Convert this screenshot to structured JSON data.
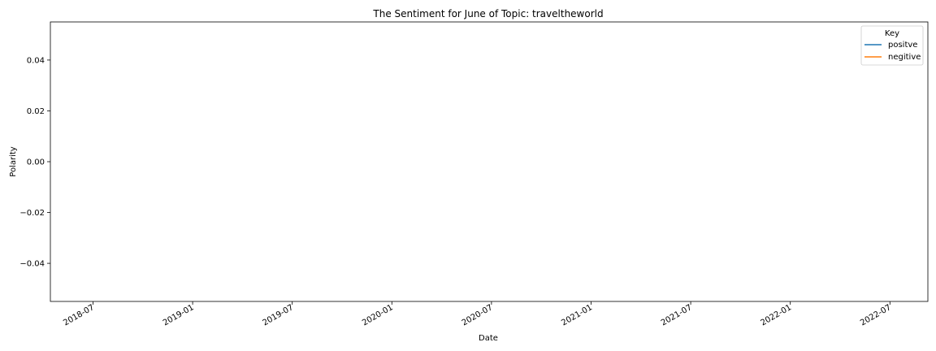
{
  "chart_data": {
    "type": "line",
    "title": "The Sentiment for June of Topic: traveltheworld",
    "xlabel": "Date",
    "ylabel": "Polarity",
    "x_ticks": [
      "2018-07",
      "2019-01",
      "2019-07",
      "2020-01",
      "2020-07",
      "2021-01",
      "2021-07",
      "2022-01",
      "2022-07"
    ],
    "y_ticks": [
      "0.04",
      "0.02",
      "0.00",
      "−0.02",
      "−0.04"
    ],
    "y_tick_values": [
      0.04,
      0.02,
      0.0,
      -0.02,
      -0.04
    ],
    "ylim": [
      -0.055,
      0.055
    ],
    "grid": false,
    "legend": {
      "title": "Key",
      "placement": "top-right",
      "entries": [
        {
          "label": "positve",
          "color": "#1f77b4"
        },
        {
          "label": "negitive",
          "color": "#ff7f0e"
        }
      ]
    },
    "series": [
      {
        "name": "positve",
        "color": "#1f77b4",
        "values": []
      },
      {
        "name": "negitive",
        "color": "#ff7f0e",
        "values": []
      }
    ]
  }
}
